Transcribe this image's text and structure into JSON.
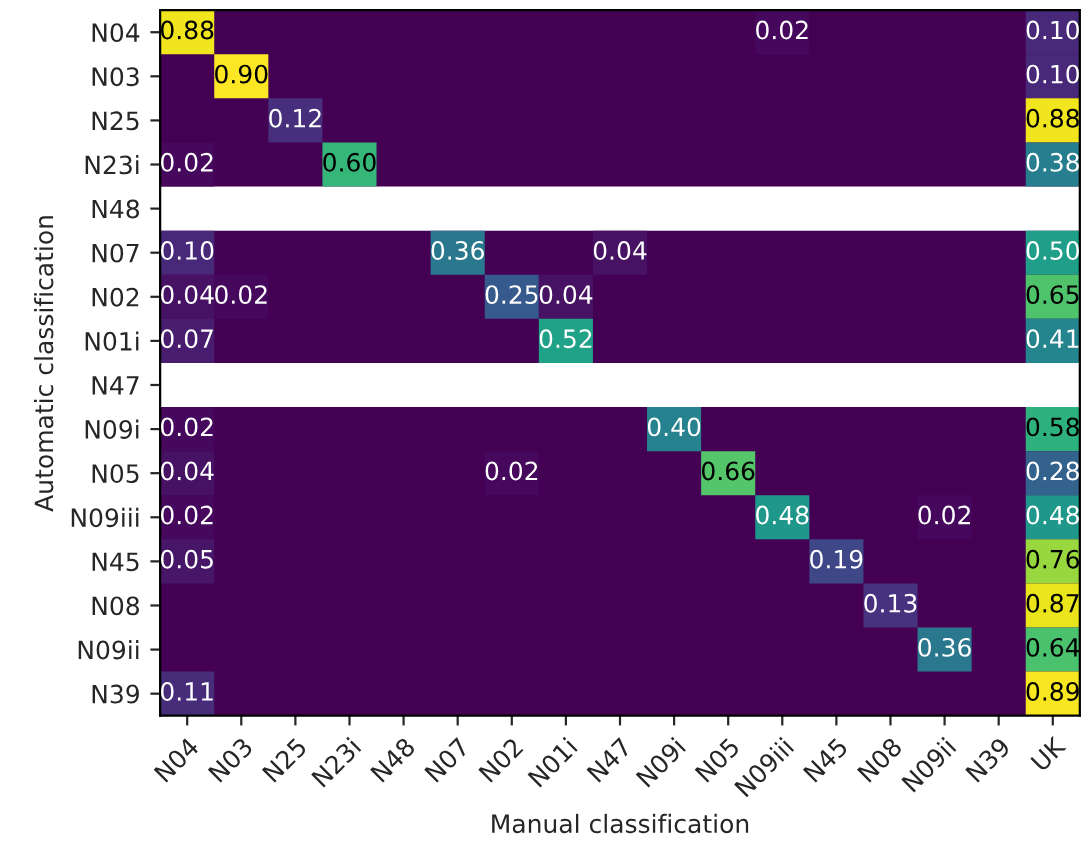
{
  "chart_data": {
    "type": "heatmap",
    "xlabel": "Manual classification",
    "ylabel": "Automatic classification",
    "categories": [
      "N04",
      "N03",
      "N25",
      "N23i",
      "N48",
      "N07",
      "N02",
      "N01i",
      "N47",
      "N09i",
      "N05",
      "N09iii",
      "N45",
      "N08",
      "N09ii",
      "N39",
      "UK"
    ],
    "y_categories": [
      "N04",
      "N03",
      "N25",
      "N23i",
      "N48",
      "N07",
      "N02",
      "N01i",
      "N47",
      "N09i",
      "N05",
      "N09iii",
      "N45",
      "N08",
      "N09ii",
      "N39"
    ],
    "cells": [
      [
        0.88,
        null,
        null,
        null,
        null,
        null,
        null,
        null,
        null,
        null,
        null,
        0.02,
        null,
        null,
        null,
        null,
        0.1
      ],
      [
        null,
        0.9,
        null,
        null,
        null,
        null,
        null,
        null,
        null,
        null,
        null,
        null,
        null,
        null,
        null,
        null,
        0.1
      ],
      [
        null,
        null,
        0.12,
        null,
        null,
        null,
        null,
        null,
        null,
        null,
        null,
        null,
        null,
        null,
        null,
        null,
        0.88
      ],
      [
        0.02,
        null,
        null,
        0.6,
        null,
        null,
        null,
        null,
        null,
        null,
        null,
        null,
        null,
        null,
        null,
        null,
        0.38
      ],
      [
        null,
        null,
        null,
        null,
        null,
        null,
        null,
        null,
        null,
        null,
        null,
        null,
        null,
        null,
        null,
        null,
        null
      ],
      [
        0.1,
        null,
        null,
        null,
        null,
        0.36,
        null,
        null,
        0.04,
        null,
        null,
        null,
        null,
        null,
        null,
        null,
        0.5
      ],
      [
        0.04,
        0.02,
        null,
        null,
        null,
        null,
        0.25,
        0.04,
        null,
        null,
        null,
        null,
        null,
        null,
        null,
        null,
        0.65
      ],
      [
        0.07,
        null,
        null,
        null,
        null,
        null,
        null,
        0.52,
        null,
        null,
        null,
        null,
        null,
        null,
        null,
        null,
        0.41
      ],
      [
        null,
        null,
        null,
        null,
        null,
        null,
        null,
        null,
        null,
        null,
        null,
        null,
        null,
        null,
        null,
        null,
        null
      ],
      [
        0.02,
        null,
        null,
        null,
        null,
        null,
        null,
        null,
        null,
        0.4,
        null,
        null,
        null,
        null,
        null,
        null,
        0.58
      ],
      [
        0.04,
        null,
        null,
        null,
        null,
        null,
        0.02,
        null,
        null,
        null,
        0.66,
        null,
        null,
        null,
        null,
        null,
        0.28
      ],
      [
        0.02,
        null,
        null,
        null,
        null,
        null,
        null,
        null,
        null,
        null,
        null,
        0.48,
        null,
        null,
        0.02,
        null,
        0.48
      ],
      [
        0.05,
        null,
        null,
        null,
        null,
        null,
        null,
        null,
        null,
        null,
        null,
        null,
        0.19,
        null,
        null,
        null,
        0.76
      ],
      [
        null,
        null,
        null,
        null,
        null,
        null,
        null,
        null,
        null,
        null,
        null,
        null,
        null,
        0.13,
        null,
        null,
        0.87
      ],
      [
        null,
        null,
        null,
        null,
        null,
        null,
        null,
        null,
        null,
        null,
        null,
        null,
        null,
        null,
        0.36,
        null,
        0.64
      ],
      [
        0.11,
        null,
        null,
        null,
        null,
        null,
        null,
        null,
        null,
        null,
        null,
        null,
        null,
        null,
        null,
        null,
        0.89
      ]
    ],
    "cell_labels": [
      [
        "0.88",
        null,
        null,
        null,
        null,
        null,
        null,
        null,
        null,
        null,
        null,
        "0.02",
        null,
        null,
        null,
        null,
        "0.10"
      ],
      [
        null,
        "0.90",
        null,
        null,
        null,
        null,
        null,
        null,
        null,
        null,
        null,
        null,
        null,
        null,
        null,
        null,
        "0.10"
      ],
      [
        null,
        null,
        "0.12",
        null,
        null,
        null,
        null,
        null,
        null,
        null,
        null,
        null,
        null,
        null,
        null,
        null,
        "0.88"
      ],
      [
        "0.02",
        null,
        null,
        "0.60",
        null,
        null,
        null,
        null,
        null,
        null,
        null,
        null,
        null,
        null,
        null,
        null,
        "0.38"
      ],
      [
        null,
        null,
        null,
        null,
        null,
        null,
        null,
        null,
        null,
        null,
        null,
        null,
        null,
        null,
        null,
        null,
        null
      ],
      [
        "0.10",
        null,
        null,
        null,
        null,
        "0.36",
        null,
        null,
        "0.04",
        null,
        null,
        null,
        null,
        null,
        null,
        null,
        "0.50"
      ],
      [
        "0.04",
        "0.02",
        null,
        null,
        null,
        null,
        "0.25",
        "0.04",
        null,
        null,
        null,
        null,
        null,
        null,
        null,
        null,
        "0.65"
      ],
      [
        "0.07",
        null,
        null,
        null,
        null,
        null,
        null,
        "0.52",
        null,
        null,
        null,
        null,
        null,
        null,
        null,
        null,
        "0.41"
      ],
      [
        null,
        null,
        null,
        null,
        null,
        null,
        null,
        null,
        null,
        null,
        null,
        null,
        null,
        null,
        null,
        null,
        null
      ],
      [
        "0.02",
        null,
        null,
        null,
        null,
        null,
        null,
        null,
        null,
        "0.40",
        null,
        null,
        null,
        null,
        null,
        null,
        "0.58"
      ],
      [
        "0.04",
        null,
        null,
        null,
        null,
        null,
        "0.02",
        null,
        null,
        null,
        "0.66",
        null,
        null,
        null,
        null,
        null,
        "0.28"
      ],
      [
        "0.02",
        null,
        null,
        null,
        null,
        null,
        null,
        null,
        null,
        null,
        null,
        "0.48",
        null,
        null,
        "0.02",
        null,
        "0.48"
      ],
      [
        "0.05",
        null,
        null,
        null,
        null,
        null,
        null,
        null,
        null,
        null,
        null,
        null,
        "0.19",
        null,
        null,
        null,
        "0.76"
      ],
      [
        null,
        null,
        null,
        null,
        null,
        null,
        null,
        null,
        null,
        null,
        null,
        null,
        null,
        "0.13",
        null,
        null,
        "0.87"
      ],
      [
        null,
        null,
        null,
        null,
        null,
        null,
        null,
        null,
        null,
        null,
        null,
        null,
        null,
        null,
        "0.36",
        null,
        "0.64"
      ],
      [
        "0.11",
        null,
        null,
        null,
        null,
        null,
        null,
        null,
        null,
        null,
        null,
        null,
        null,
        null,
        null,
        null,
        "0.89"
      ]
    ]
  }
}
